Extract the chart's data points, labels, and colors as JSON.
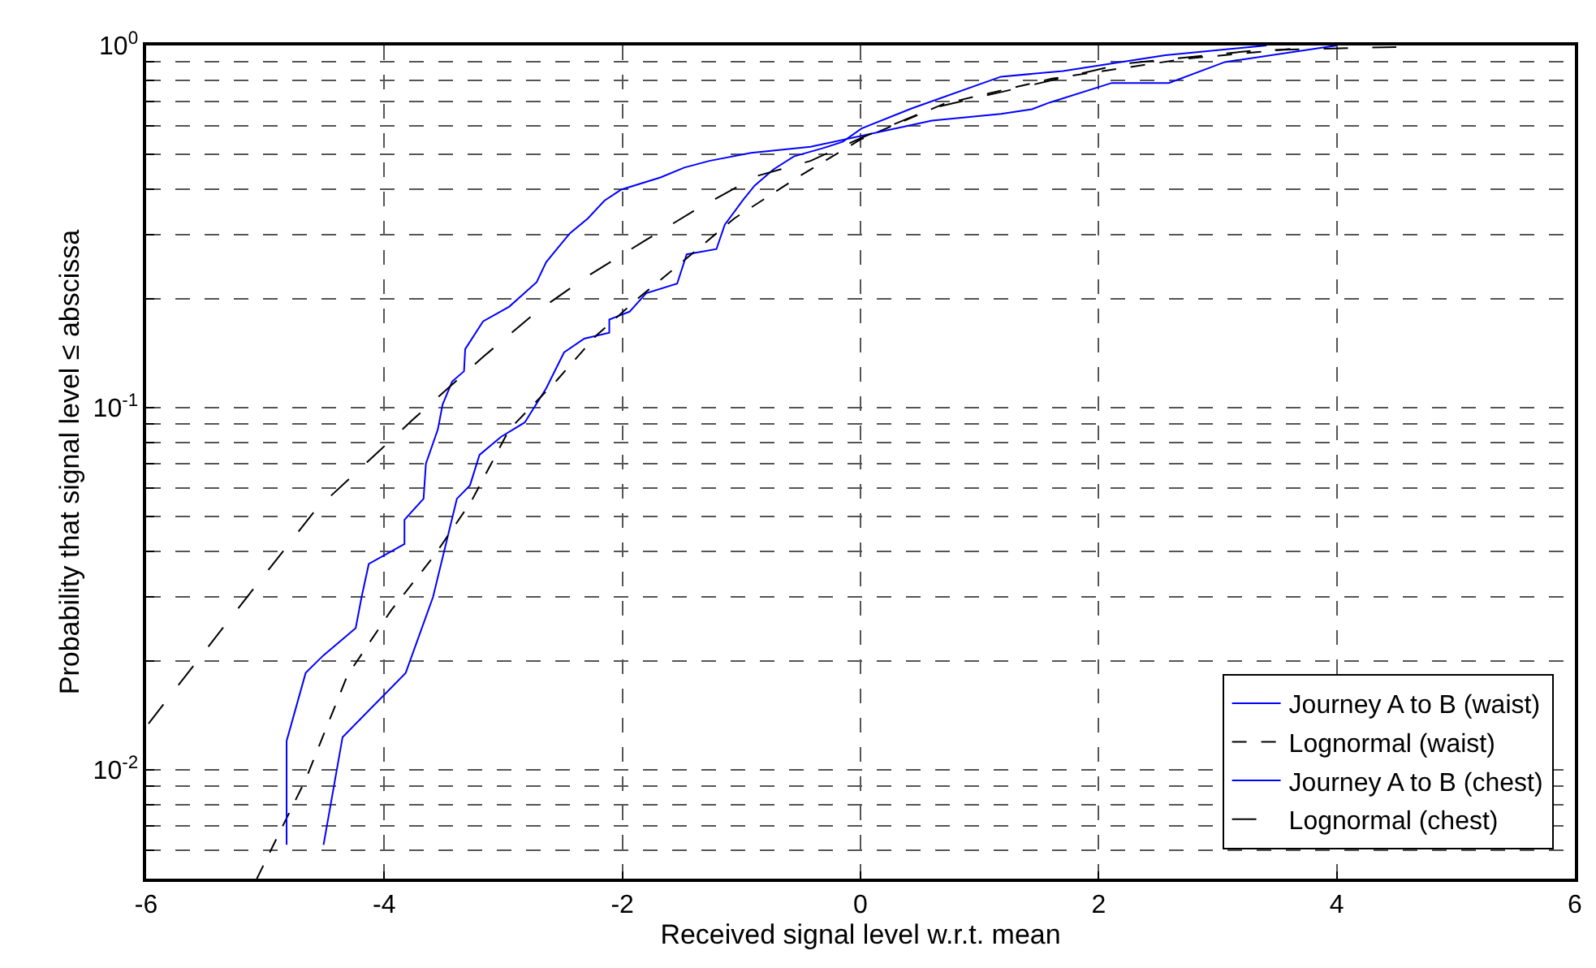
{
  "chart_data": {
    "type": "line",
    "xlabel": "Received signal level w.r.t. mean",
    "ylabel": "Probability that signal level ≤ abscissa",
    "log": "y",
    "grid": true,
    "legend": "bottom right",
    "marker": "none",
    "xlim": [
      -6,
      6
    ],
    "xticks": [
      -6,
      -4,
      -2,
      0,
      2,
      4,
      6
    ],
    "ylim": [
      0.005,
      1
    ],
    "yticks": [
      {
        "value": 0.006,
        "label": null
      },
      {
        "value": 0.007,
        "label": null
      },
      {
        "value": 0.008,
        "label": null
      },
      {
        "value": 0.009,
        "label": null
      },
      {
        "value": 0.01,
        "label": "10$^{-2}$"
      },
      {
        "value": 0.02,
        "label": null
      },
      {
        "value": 0.03,
        "label": null
      },
      {
        "value": 0.04,
        "label": null
      },
      {
        "value": 0.05,
        "label": null
      },
      {
        "value": 0.06,
        "label": null
      },
      {
        "value": 0.07,
        "label": null
      },
      {
        "value": 0.08,
        "label": null
      },
      {
        "value": 0.09,
        "label": null
      },
      {
        "value": 0.1,
        "label": "10$^{-1}$"
      },
      {
        "value": 0.2,
        "label": null
      },
      {
        "value": 0.3,
        "label": null
      },
      {
        "value": 0.4,
        "label": null
      },
      {
        "value": 0.5,
        "label": null
      },
      {
        "value": 0.6,
        "label": null
      },
      {
        "value": 0.7,
        "label": null
      },
      {
        "value": 0.8,
        "label": null
      },
      {
        "value": 0.9,
        "label": null
      },
      {
        "value": 1,
        "label": "10$^{0}$"
      }
    ],
    "series": [
      {
        "name": "Journey A to B (waist)",
        "color": "#0000ff",
        "line_style": "solid",
        "x": [
          -4.51,
          -4.35,
          -3.82,
          -3.59,
          -3.39,
          -3.28,
          -3.2,
          -3.02,
          -2.82,
          -2.64,
          -2.49,
          -2.32,
          -2.11,
          -2.11,
          -1.94,
          -1.8,
          -1.54,
          -1.46,
          -1.21,
          -1.14,
          -0.99,
          -0.89,
          -0.73,
          -0.56,
          -0.32,
          -0.15,
          0.01,
          0.43,
          1.18,
          1.7,
          2.56,
          3.41
        ],
        "values": [
          0.0062,
          0.0123,
          0.0185,
          0.03,
          0.056,
          0.061,
          0.074,
          0.083,
          0.091,
          0.113,
          0.142,
          0.155,
          0.161,
          0.175,
          0.184,
          0.207,
          0.22,
          0.265,
          0.274,
          0.32,
          0.373,
          0.41,
          0.455,
          0.494,
          0.52,
          0.542,
          0.59,
          0.67,
          0.82,
          0.85,
          0.94,
          1.0
        ]
      },
      {
        "name": "Lognormal (waist)",
        "color": "#000000",
        "line_style": "dashed",
        "x": [
          -5.07,
          -4.66,
          -4.31,
          -3.94,
          -3.58,
          -3.27,
          -2.95,
          -2.55,
          -2.22,
          -1.87,
          -1.5,
          -1.06,
          -0.51,
          0,
          0.7,
          1.61,
          2.74,
          3.64
        ],
        "values": [
          0.005,
          0.0094,
          0.0182,
          0.0276,
          0.039,
          0.055,
          0.087,
          0.119,
          0.158,
          0.2,
          0.252,
          0.333,
          0.436,
          0.55,
          0.69,
          0.81,
          0.92,
          0.98
        ]
      },
      {
        "name": "Journey A to B (chest)",
        "color": "#0000ff",
        "line_style": "solid",
        "x": [
          -4.82,
          -4.82,
          -4.66,
          -4.51,
          -4.24,
          -4.19,
          -4.13,
          -3.83,
          -3.83,
          -3.67,
          -3.65,
          -3.55,
          -3.51,
          -3.43,
          -3.33,
          -3.32,
          -3.17,
          -2.95,
          -2.72,
          -2.64,
          -2.55,
          -2.44,
          -2.29,
          -2.15,
          -2.01,
          -1.68,
          -1.48,
          -1.27,
          -0.92,
          -0.42,
          0.6,
          1.18,
          1.44,
          1.59,
          2.11,
          2.59,
          3.06,
          4.0
        ],
        "values": [
          0.0062,
          0.012,
          0.0185,
          0.0207,
          0.0246,
          0.03,
          0.037,
          0.042,
          0.049,
          0.056,
          0.07,
          0.087,
          0.102,
          0.118,
          0.126,
          0.145,
          0.173,
          0.19,
          0.222,
          0.252,
          0.274,
          0.303,
          0.333,
          0.373,
          0.4,
          0.432,
          0.46,
          0.48,
          0.505,
          0.525,
          0.62,
          0.647,
          0.667,
          0.696,
          0.788,
          0.788,
          0.9,
          1.0
        ]
      },
      {
        "name": "Lognormal (chest)",
        "color": "#000000",
        "line_style": "longdash",
        "x": [
          -5.98,
          -5.3,
          -4.58,
          -4.04,
          -3.77,
          -3.17,
          -2.72,
          -2.28,
          -1.82,
          -1.37,
          -0.87,
          -0.42,
          0.03,
          0.62,
          1.38,
          2.2,
          3.33,
          4.5
        ],
        "values": [
          0.0134,
          0.026,
          0.052,
          0.076,
          0.092,
          0.138,
          0.184,
          0.232,
          0.288,
          0.354,
          0.436,
          0.48,
          0.56,
          0.674,
          0.77,
          0.89,
          0.97,
          0.99
        ]
      }
    ]
  }
}
